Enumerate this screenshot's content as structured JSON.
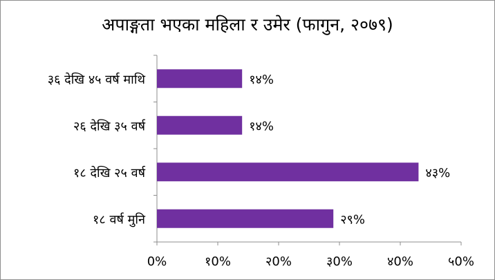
{
  "chart_data": {
    "type": "bar",
    "orientation": "horizontal",
    "title": "अपाङ्गता भएका महिला र उमेर (फागुन, २०७९)",
    "categories": [
      "३६ देखि ४५ वर्ष माथि",
      "२६ देखि ३५ वर्ष",
      "१८ देखि २५ वर्ष",
      "१८ वर्ष मुनि"
    ],
    "values": [
      14,
      14,
      43,
      29
    ],
    "value_labels": [
      "१४%",
      "१४%",
      "४३%",
      "२९%"
    ],
    "xlim": [
      0,
      50
    ],
    "x_ticks": [
      0,
      10,
      20,
      30,
      40,
      50
    ],
    "x_tick_labels": [
      "0%",
      "१0%",
      "२0%",
      "३0%",
      "४0%",
      "५0%"
    ],
    "bar_color": "#7030a0",
    "grid": false,
    "legend": "none",
    "xlabel": "",
    "ylabel": ""
  }
}
